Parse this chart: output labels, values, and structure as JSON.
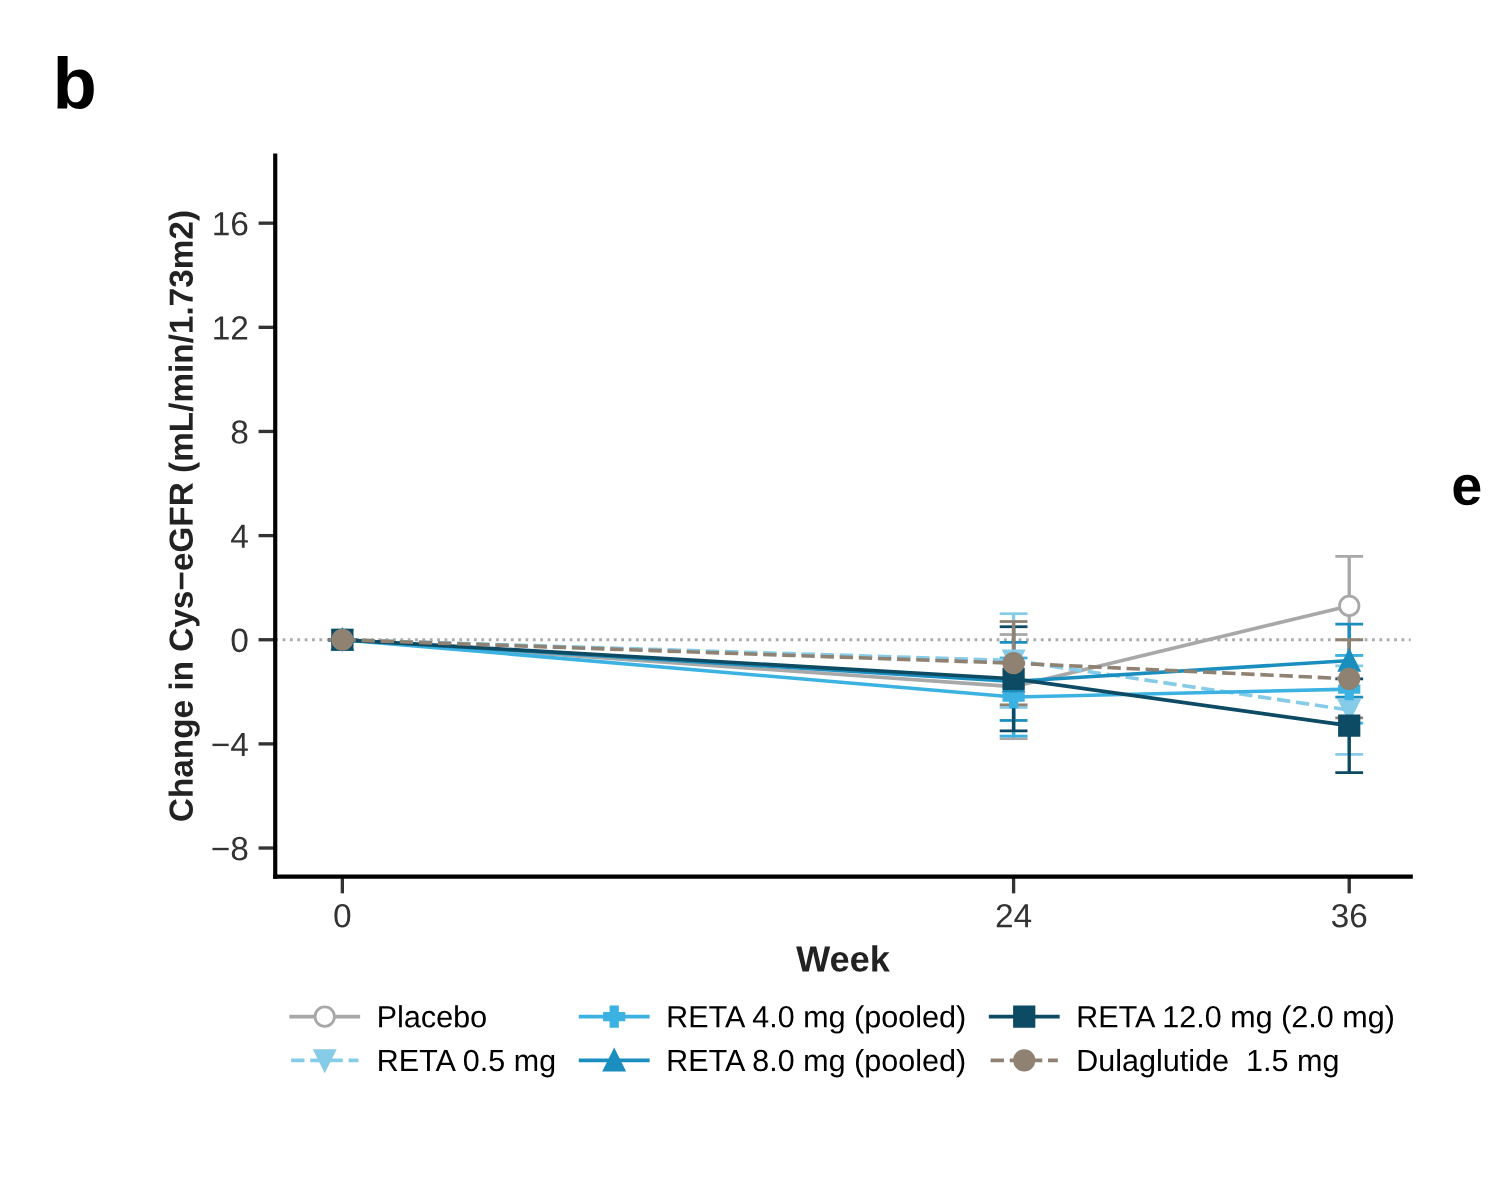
{
  "chart_data": {
    "type": "line",
    "xlabel": "Week",
    "ylabel": "Change in Cys−eGFR (mL/min/1.73m2)",
    "x": [
      0,
      24,
      36
    ],
    "xlim": [
      -2.4,
      38.2
    ],
    "xticks": [
      0,
      24,
      36
    ],
    "ylim": [
      -9.1,
      18.6
    ],
    "yticks": [
      -8,
      -4,
      0,
      4,
      8,
      12,
      16
    ],
    "grid": false,
    "legend": "bottom",
    "ref_lines": [
      {
        "axis": "y",
        "value": 0,
        "color": "#aaaaaa",
        "line_style": "dotted"
      }
    ],
    "annotations": [
      "b",
      "e"
    ],
    "series": [
      {
        "name": "Placebo",
        "color": "#a8a8a8",
        "marker": "circle",
        "line_style": "solid",
        "values": [
          0,
          -1.8,
          1.3
        ],
        "errors": [
          null,
          2.0,
          1.9
        ]
      },
      {
        "name": "RETA 0.5 mg",
        "color": "#86cbe8",
        "marker": "triangle_down",
        "line_style": "dashed",
        "values": [
          0,
          -0.8,
          -2.7
        ],
        "errors": [
          null,
          1.8,
          1.7
        ]
      },
      {
        "name": "RETA 4.0 mg (pooled)",
        "color": "#3cb2e2",
        "marker": "plus",
        "line_style": "solid",
        "values": [
          0,
          -2.2,
          -1.9
        ],
        "errors": [
          null,
          1.5,
          1.3
        ]
      },
      {
        "name": "RETA 8.0 mg (pooled)",
        "color": "#1a8fbf",
        "marker": "triangle",
        "line_style": "solid",
        "values": [
          0,
          -1.6,
          -0.8
        ],
        "errors": [
          null,
          1.5,
          1.4
        ]
      },
      {
        "name": "RETA 12.0 mg (2.0 mg)",
        "color": "#0d4a63",
        "marker": "square",
        "line_style": "solid",
        "values": [
          0,
          -1.5,
          -3.3
        ],
        "errors": [
          null,
          2.0,
          1.8
        ]
      },
      {
        "name": "Dulaglutide  1.5 mg",
        "color": "#8f8272",
        "marker": "circle",
        "line_style": "dashed",
        "values": [
          0,
          -0.9,
          -1.5
        ],
        "errors": [
          null,
          1.6,
          1.5
        ]
      }
    ]
  }
}
